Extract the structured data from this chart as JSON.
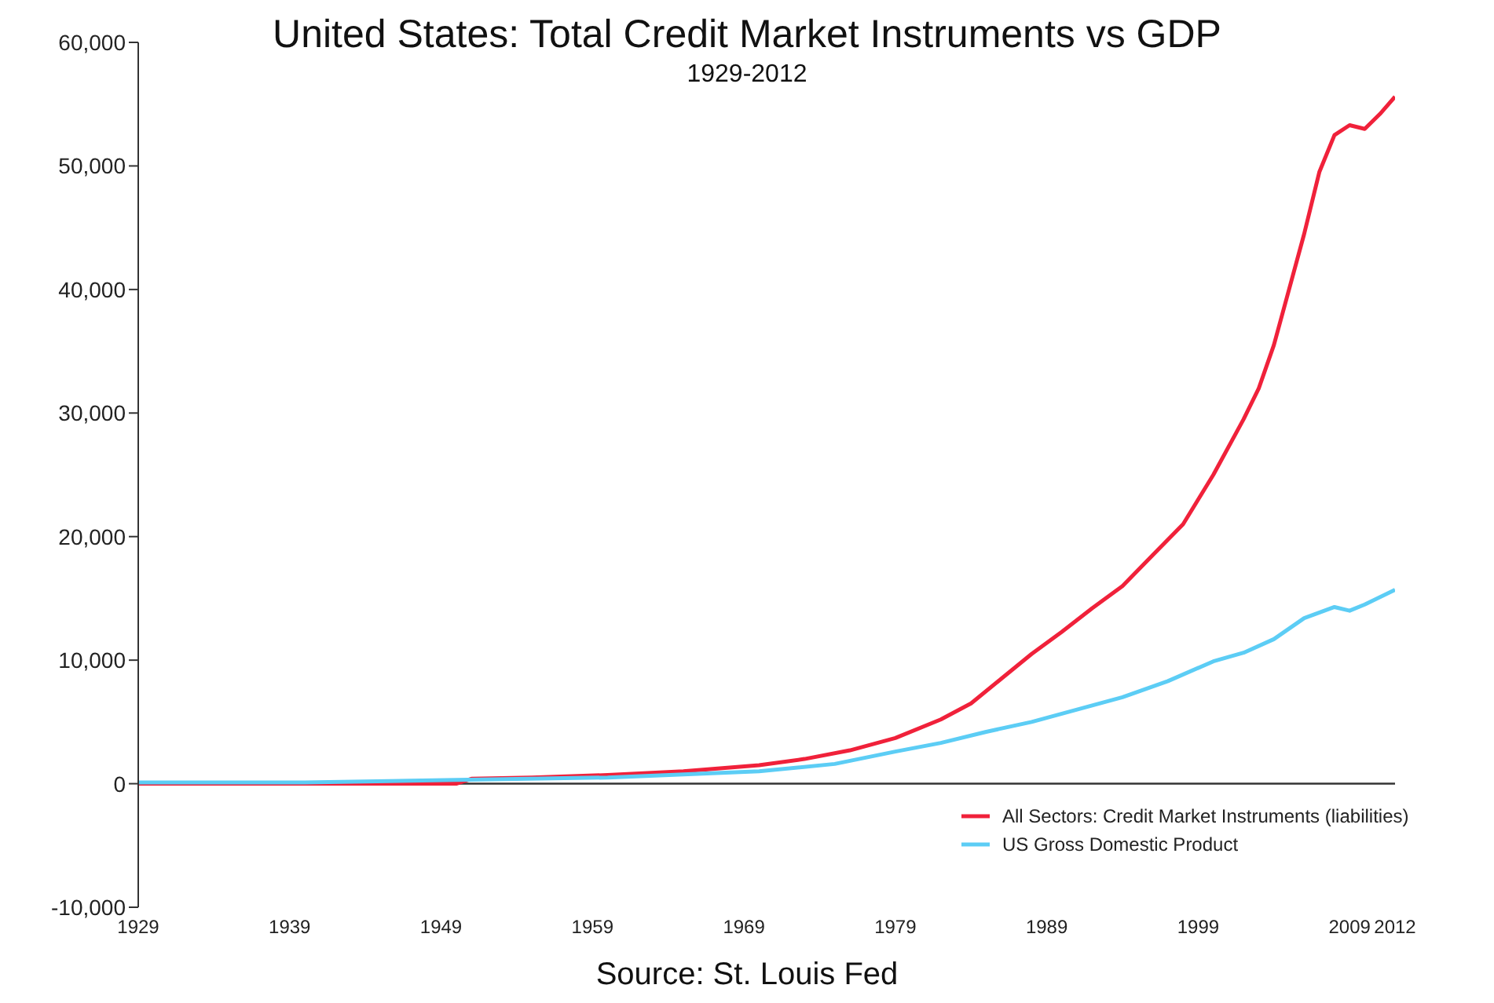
{
  "chart_data": {
    "type": "line",
    "title": "United States: Total Credit Market Instruments vs GDP",
    "subtitle": "1929-2012",
    "annotations": [
      "Source: St. Louis Fed"
    ],
    "xlim": [
      1929,
      2012
    ],
    "xticks": [
      1929,
      1939,
      1949,
      1959,
      1969,
      1979,
      1989,
      1999,
      2009,
      2012
    ],
    "ylim": [
      -10000,
      60000
    ],
    "yticks": [
      {
        "value": -10000,
        "label": "-10,000"
      },
      0,
      {
        "value": 10000,
        "label": "10,000"
      },
      {
        "value": 20000,
        "label": "20,000"
      },
      {
        "value": 30000,
        "label": "30,000"
      },
      {
        "value": 40000,
        "label": "40,000"
      },
      {
        "value": 50000,
        "label": "50,000"
      },
      {
        "value": 60000,
        "label": "60,000"
      }
    ],
    "grid": false,
    "legend": "bottom right",
    "marker": "none",
    "line_style": "solid",
    "ref_lines": [
      {
        "axis": "y",
        "value": 0,
        "color": "#333333"
      }
    ],
    "series": [
      {
        "name": "All Sectors: Credit Market Instruments (liabilities)",
        "color": "#f0213a",
        "x": [
          1929,
          1940,
          1950,
          1951,
          1955,
          1960,
          1965,
          1970,
          1973,
          1976,
          1979,
          1982,
          1984,
          1986,
          1988,
          1990,
          1992,
          1994,
          1996,
          1998,
          2000,
          2002,
          2003,
          2004,
          2005,
          2006,
          2007,
          2008,
          2009,
          2010,
          2011,
          2012
        ],
        "values": [
          0,
          0,
          0,
          400,
          500,
          700,
          1000,
          1500,
          2000,
          2700,
          3700,
          5200,
          6500,
          8500,
          10500,
          12300,
          14200,
          16000,
          18500,
          21000,
          25000,
          29500,
          32000,
          35500,
          40000,
          44500,
          49500,
          52500,
          53300,
          53000,
          54200,
          55600
        ]
      },
      {
        "name": "US Gross Domestic Product",
        "color": "#5ccdf5",
        "x": [
          1929,
          1940,
          1950,
          1960,
          1970,
          1975,
          1979,
          1982,
          1985,
          1988,
          1991,
          1994,
          1997,
          2000,
          2002,
          2004,
          2006,
          2008,
          2009,
          2010,
          2012
        ],
        "values": [
          100,
          100,
          300,
          500,
          1000,
          1600,
          2600,
          3300,
          4200,
          5000,
          6000,
          7000,
          8300,
          9900,
          10600,
          11700,
          13400,
          14300,
          14000,
          14500,
          15700
        ]
      }
    ]
  }
}
